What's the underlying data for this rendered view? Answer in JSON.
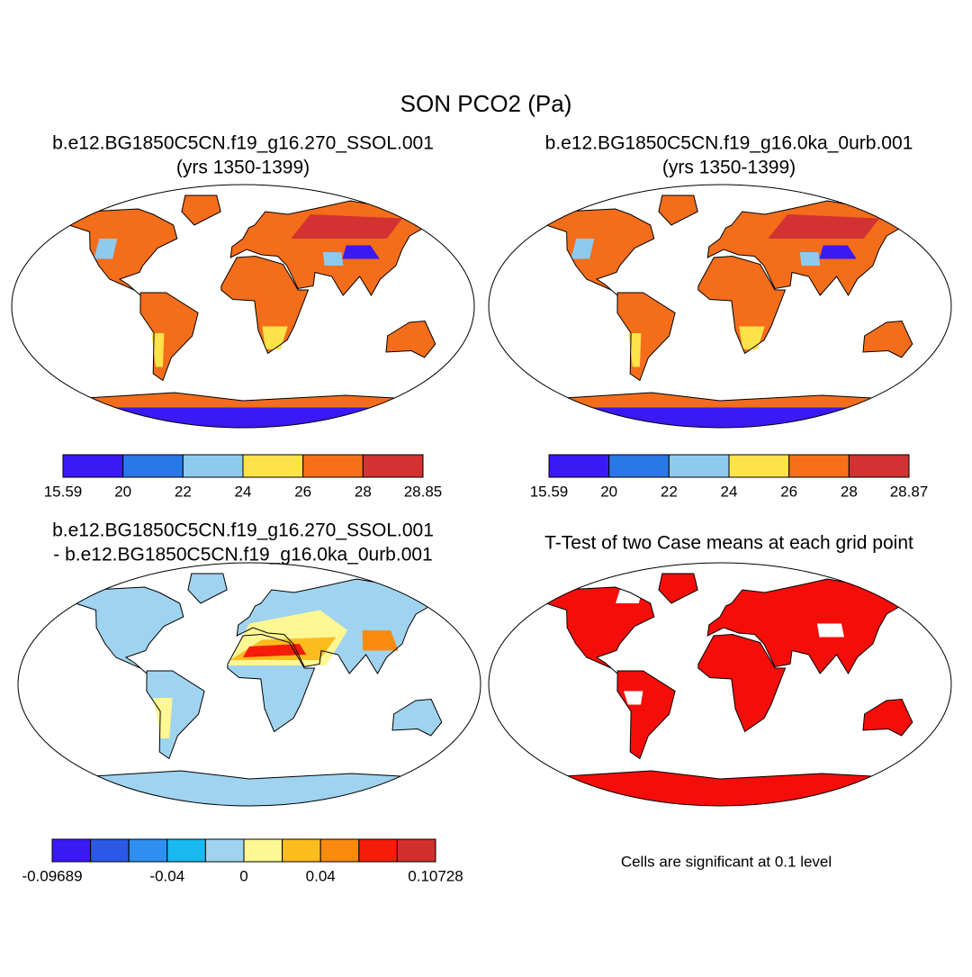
{
  "title": "SON PCO2 (Pa)",
  "panels": [
    {
      "title": [
        "b.e12.BG1850C5CN.f19_g16.270_SSOL.001",
        "(yrs 1350-1399)"
      ],
      "colorbar": {
        "levels": [
          15.59,
          20,
          22,
          24,
          26,
          28,
          28.85
        ],
        "ticks": [
          15.59,
          20,
          22,
          24,
          26,
          28,
          28.85
        ],
        "colors": [
          "#3b19f5",
          "#2a77e8",
          "#8ec9ee",
          "#fde24a",
          "#f86f1b",
          "#d23232"
        ]
      }
    },
    {
      "title": [
        "b.e12.BG1850C5CN.f19_g16.0ka_0urb.001",
        "(yrs 1350-1399)"
      ],
      "colorbar": {
        "levels": [
          15.59,
          20,
          22,
          24,
          26,
          28,
          28.87
        ],
        "ticks": [
          15.59,
          20,
          22,
          24,
          26,
          28,
          28.87
        ],
        "colors": [
          "#3b19f5",
          "#2a77e8",
          "#8ec9ee",
          "#fde24a",
          "#f86f1b",
          "#d23232"
        ]
      }
    },
    {
      "title": [
        "b.e12.BG1850C5CN.f19_g16.270_SSOL.001",
        "- b.e12.BG1850C5CN.f19_g16.0ka_0urb.001"
      ],
      "colorbar": {
        "levels": [
          -0.09689,
          -0.08,
          -0.06,
          -0.04,
          -0.02,
          0,
          0.02,
          0.04,
          0.06,
          0.08,
          0.10728
        ],
        "ticks": [
          -0.09689,
          -0.04,
          0,
          0.04,
          0.10728
        ],
        "colors": [
          "#3b19f5",
          "#2c58e6",
          "#2f8ff0",
          "#19b8f0",
          "#9fd3ef",
          "#fff694",
          "#fcbc1d",
          "#f98a10",
          "#f61c0a",
          "#d0302b"
        ]
      }
    },
    {
      "title": [
        "T-Test of two Case means at each grid point"
      ],
      "note": "Cells are significant at 0.1 level"
    }
  ]
}
